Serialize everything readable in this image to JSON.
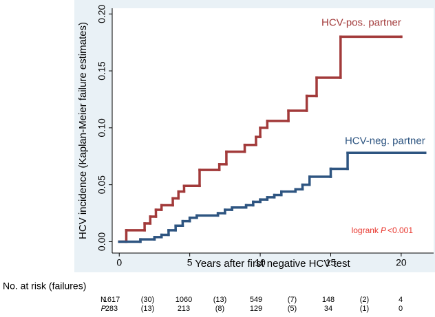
{
  "chart_data": {
    "type": "step",
    "xlabel": "Years after first negative HCV test",
    "ylabel": "HCV incidence (Kaplan-Meier failure estimates)",
    "xlim": [
      -0.5,
      22.3
    ],
    "ylim": [
      -0.01,
      0.205
    ],
    "xticks": [
      0,
      5,
      10,
      15,
      20
    ],
    "yticks": [
      {
        "value": 0,
        "label": "0.00"
      },
      {
        "value": 0.05,
        "label": "0.05"
      },
      {
        "value": 0.1,
        "label": "0.10"
      },
      {
        "value": 0.15,
        "label": "0.15"
      },
      {
        "value": 0.2,
        "label": "0.20"
      }
    ],
    "series": [
      {
        "name": "HCV-pos. partner",
        "color": "#a23a3a",
        "x": [
          0,
          0.5,
          1.8,
          2.2,
          2.6,
          3.0,
          3.8,
          4.2,
          4.6,
          5.7,
          7.1,
          7.6,
          8.9,
          9.7,
          10.0,
          10.5,
          12.0,
          13.3,
          14.0,
          15.7,
          20.0
        ],
        "values": [
          0,
          0.01,
          0.016,
          0.022,
          0.028,
          0.032,
          0.038,
          0.044,
          0.049,
          0.063,
          0.068,
          0.079,
          0.085,
          0.092,
          0.1,
          0.106,
          0.115,
          0.128,
          0.144,
          0.18,
          0.18
        ]
      },
      {
        "name": "HCV-neg. partner",
        "color": "#2e5581",
        "x": [
          0,
          1.5,
          2.5,
          3.0,
          3.5,
          4.0,
          4.5,
          5.0,
          5.5,
          7.0,
          7.5,
          8.0,
          9.0,
          9.5,
          10.0,
          10.5,
          11.0,
          11.5,
          12.5,
          13.0,
          13.5,
          15.0,
          16.2,
          21.7
        ],
        "values": [
          0,
          0.002,
          0.004,
          0.006,
          0.01,
          0.014,
          0.018,
          0.021,
          0.023,
          0.025,
          0.028,
          0.03,
          0.032,
          0.035,
          0.037,
          0.039,
          0.041,
          0.044,
          0.046,
          0.05,
          0.057,
          0.064,
          0.078,
          0.078
        ]
      }
    ],
    "annotation": {
      "text": "logrank",
      "italic": "P",
      "rest": "<0.001",
      "color": "#e8332a"
    },
    "risk_table": {
      "title": "No. at risk (failures)",
      "rows": [
        {
          "label": "N",
          "cells": [
            "1617",
            "(30)",
            "1060",
            "(13)",
            "549",
            "(7)",
            "148",
            "(2)",
            "4"
          ]
        },
        {
          "label": "P",
          "cells": [
            "283",
            "(13)",
            "213",
            "(8)",
            "129",
            "(5)",
            "34",
            "(1)",
            "0"
          ]
        }
      ]
    }
  }
}
